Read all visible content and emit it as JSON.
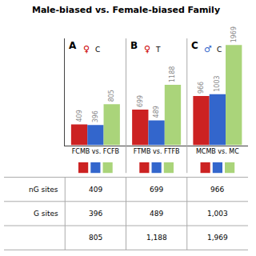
{
  "chart_data": {
    "type": "bar",
    "title": "Male-biased vs. Female-biased Family",
    "categories": [
      "FCMB vs. FCFB",
      "FTMB vs. FTFB",
      "MCMB vs. MC"
    ],
    "series": [
      {
        "color": "#cc2222",
        "values": [
          409,
          699,
          966
        ]
      },
      {
        "color": "#3366cc",
        "values": [
          396,
          489,
          1003
        ]
      },
      {
        "color": "#aad47a",
        "values": [
          805,
          1188,
          1969
        ]
      }
    ],
    "ylim": [
      0,
      2100
    ],
    "yticks": [],
    "tick_labels": "x",
    "grid": false,
    "data_labels": true,
    "annotations": [
      {
        "label": "A",
        "symbol": "♀",
        "symbol_color": "#cc0000",
        "letter": "C"
      },
      {
        "label": "B",
        "symbol": "♀",
        "symbol_color": "#cc0000",
        "letter": "T"
      },
      {
        "label": "C",
        "symbol": "♂",
        "symbol_color": "#3366cc",
        "letter": "C"
      }
    ],
    "table": {
      "row_labels": [
        "nG sites",
        "G sites",
        null
      ],
      "rows": [
        [
          "409",
          "699",
          "966"
        ],
        [
          "396",
          "489",
          "1,003"
        ],
        [
          "805",
          "1,188",
          "1,969"
        ]
      ]
    }
  }
}
